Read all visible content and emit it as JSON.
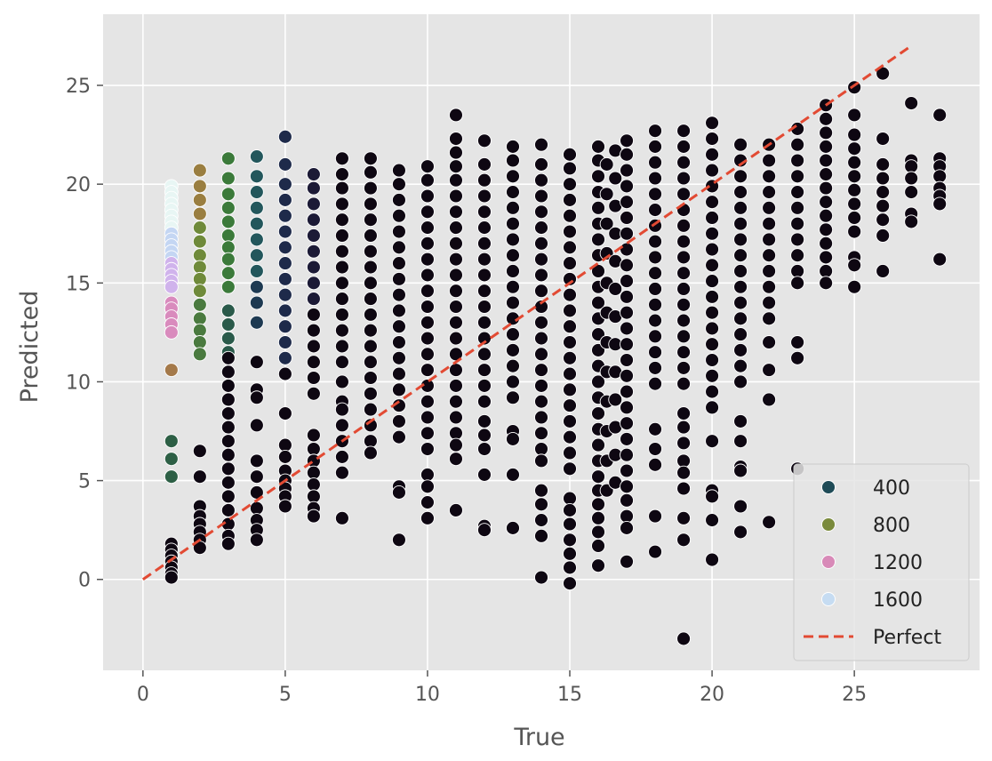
{
  "chart_data": {
    "type": "scatter",
    "title": "",
    "xlabel": "True",
    "ylabel": "Predicted",
    "xlim": [
      -1.4,
      29.4
    ],
    "ylim": [
      -4.6,
      28.6
    ],
    "xticks": [
      0,
      5,
      10,
      15,
      20,
      25
    ],
    "yticks": [
      0,
      5,
      10,
      15,
      20,
      25
    ],
    "grid": true,
    "hue_palette": "cubehelix",
    "legend_position": "lower-right",
    "legend": [
      {
        "label": "400",
        "kind": "marker",
        "color": "#1f4b57"
      },
      {
        "label": "800",
        "kind": "marker",
        "color": "#7a8a3c"
      },
      {
        "label": "1200",
        "kind": "marker",
        "color": "#d88ab8"
      },
      {
        "label": "1600",
        "kind": "marker",
        "color": "#c6dcf2"
      },
      {
        "label": "Perfect",
        "kind": "line",
        "color": "#e24a33"
      }
    ],
    "perfect_line": {
      "x": [
        0,
        27
      ],
      "y": [
        0,
        27
      ],
      "style": "dashed",
      "color": "#e24a33"
    },
    "point_color_default": "#120718",
    "series": [
      {
        "x": 1,
        "color": "#e8f6f4",
        "y": [
          19.9,
          19.6,
          19.3,
          19.0,
          18.7,
          18.4,
          18.1,
          17.8
        ]
      },
      {
        "x": 1,
        "color": "#c4d6f3",
        "y": [
          17.5,
          17.2,
          16.9,
          16.6,
          16.3
        ]
      },
      {
        "x": 1,
        "color": "#d0b3ec",
        "y": [
          16.0,
          15.7,
          15.4,
          15.1,
          14.8
        ]
      },
      {
        "x": 1,
        "color": "#d98bbd",
        "y": [
          14.0,
          13.7,
          13.3,
          12.9,
          12.5
        ]
      },
      {
        "x": 1,
        "color": "#a4794a",
        "y": [
          10.6
        ]
      },
      {
        "x": 1,
        "color": "#2d5f45",
        "y": [
          7.0,
          6.1,
          5.2
        ]
      },
      {
        "x": 1,
        "color": "#0e0712",
        "y": [
          1.8,
          1.5,
          1.2,
          0.9,
          0.6,
          0.3,
          0.1
        ]
      },
      {
        "x": 2,
        "color": "#9a7e40",
        "y": [
          20.7,
          19.9,
          19.2,
          18.5
        ]
      },
      {
        "x": 2,
        "color": "#6f8a3a",
        "y": [
          17.8,
          17.1,
          16.4,
          15.8,
          15.2,
          14.6
        ]
      },
      {
        "x": 2,
        "color": "#4a7a3f",
        "y": [
          13.9,
          13.2,
          12.6,
          12.0,
          11.4
        ]
      },
      {
        "x": 2,
        "color": "#0e0712",
        "y": [
          6.5,
          5.2,
          3.7,
          3.2,
          2.8,
          2.4,
          2.0,
          1.6
        ]
      },
      {
        "x": 3,
        "color": "#3b7a3a",
        "y": [
          21.3,
          20.3,
          19.5,
          18.8,
          18.1,
          17.4,
          16.8,
          16.2,
          15.5,
          14.8
        ]
      },
      {
        "x": 3,
        "color": "#2a5a4a",
        "y": [
          13.6,
          12.9,
          12.2,
          11.5
        ]
      },
      {
        "x": 3,
        "color": "#0e0712",
        "y": [
          11.2,
          10.5,
          9.8,
          9.1,
          8.4,
          7.7,
          7.0,
          6.3,
          5.6,
          4.9,
          4.2,
          3.5,
          2.8,
          2.2,
          1.8
        ]
      },
      {
        "x": 4,
        "color": "#23575c",
        "y": [
          21.4,
          20.4,
          19.6,
          18.8,
          18.0,
          17.2,
          16.4,
          15.6
        ]
      },
      {
        "x": 4,
        "color": "#1e3a52",
        "y": [
          14.8,
          14.0,
          13.0
        ]
      },
      {
        "x": 4,
        "color": "#0e0712",
        "y": [
          11.0,
          9.6,
          9.2,
          7.8,
          6.0,
          5.2,
          4.4,
          3.6,
          3.0,
          2.5,
          2.0
        ]
      },
      {
        "x": 5,
        "color": "#1e2a4a",
        "y": [
          22.4,
          21.0,
          20.0,
          19.2,
          18.4,
          17.6,
          16.8,
          16.0,
          15.2,
          14.4,
          13.6,
          12.8,
          12.0,
          11.2
        ]
      },
      {
        "x": 5,
        "color": "#0e0712",
        "y": [
          10.4,
          8.4,
          6.8,
          6.2,
          5.5,
          5.0,
          4.6,
          4.2,
          3.7
        ]
      },
      {
        "x": 6,
        "color": "#1c1a36",
        "y": [
          20.5,
          19.8,
          19.0,
          18.2,
          17.4,
          16.6,
          15.8,
          15.0,
          14.2
        ]
      },
      {
        "x": 6,
        "color": "#0e0712",
        "y": [
          13.4,
          12.6,
          11.8,
          11.0,
          10.2,
          9.4,
          7.3,
          6.6,
          6.0,
          5.4,
          4.8,
          4.2,
          3.6,
          3.2
        ]
      },
      {
        "x": 7,
        "color": "#0e0712",
        "y": [
          21.3,
          20.5,
          19.8,
          19.0,
          18.2,
          17.4,
          16.6,
          15.8,
          15.0,
          14.2,
          13.4,
          12.6,
          11.8,
          11.0,
          10.0,
          9.0,
          8.6,
          7.8,
          7.0,
          6.2,
          5.4,
          3.1
        ]
      },
      {
        "x": 8,
        "color": "#0e0712",
        "y": [
          21.3,
          20.6,
          19.8,
          19.0,
          18.2,
          17.4,
          16.6,
          15.8,
          15.0,
          14.2,
          13.4,
          12.6,
          11.8,
          11.0,
          10.2,
          9.4,
          8.6,
          7.8,
          7.0,
          6.4
        ]
      },
      {
        "x": 9,
        "color": "#0e0712",
        "y": [
          20.7,
          20.0,
          19.2,
          18.4,
          17.6,
          16.8,
          16.0,
          15.2,
          14.4,
          13.6,
          12.8,
          12.0,
          11.2,
          10.4,
          9.6,
          8.8,
          8.0,
          7.2,
          4.7,
          4.4,
          2.0
        ]
      },
      {
        "x": 10,
        "color": "#0e0712",
        "y": [
          20.9,
          20.2,
          19.4,
          18.6,
          17.8,
          17.0,
          16.2,
          15.4,
          14.6,
          13.8,
          13.0,
          12.2,
          11.4,
          10.6,
          9.8,
          9.0,
          8.2,
          7.4,
          6.6,
          5.3,
          4.7,
          3.9,
          3.1
        ]
      },
      {
        "x": 11,
        "color": "#0e0712",
        "y": [
          23.5,
          22.3,
          21.6,
          20.9,
          20.2,
          19.4,
          18.6,
          17.8,
          17.0,
          16.2,
          15.4,
          14.6,
          13.8,
          13.0,
          12.2,
          11.4,
          10.6,
          9.8,
          9.0,
          8.2,
          7.4,
          6.8,
          6.1,
          3.5
        ]
      },
      {
        "x": 12,
        "color": "#0e0712",
        "y": [
          22.2,
          21.0,
          20.2,
          19.4,
          18.6,
          17.8,
          17.0,
          16.2,
          15.4,
          14.6,
          13.8,
          13.0,
          12.2,
          11.4,
          10.6,
          9.8,
          9.0,
          8.0,
          7.3,
          6.6,
          5.3,
          2.7,
          2.5
        ]
      },
      {
        "x": 13,
        "color": "#0e0712",
        "y": [
          21.9,
          21.2,
          20.4,
          19.6,
          18.8,
          18.0,
          17.2,
          16.4,
          15.6,
          14.8,
          14.0,
          13.2,
          12.4,
          11.6,
          10.8,
          10.0,
          9.2,
          7.5,
          7.1,
          5.3,
          2.6
        ]
      },
      {
        "x": 14,
        "color": "#0e0712",
        "y": [
          22.0,
          21.0,
          20.2,
          19.4,
          18.6,
          17.8,
          17.0,
          16.2,
          15.4,
          14.6,
          13.8,
          13.0,
          12.2,
          11.4,
          10.6,
          9.8,
          9.0,
          8.2,
          7.4,
          6.6,
          6.0,
          4.5,
          3.8,
          3.0,
          2.2,
          0.1
        ]
      },
      {
        "x": 15,
        "color": "#0e0712",
        "y": [
          21.5,
          20.8,
          20.0,
          19.2,
          18.4,
          17.6,
          16.8,
          16.0,
          15.2,
          14.4,
          13.6,
          12.8,
          12.0,
          11.2,
          10.4,
          9.6,
          8.8,
          8.0,
          7.2,
          6.4,
          5.6,
          4.1,
          3.5,
          2.8,
          2.0,
          1.3,
          0.6,
          -0.2
        ]
      },
      {
        "x": 16,
        "color": "#0e0712",
        "y": [
          21.9,
          21.2,
          20.4,
          19.6,
          18.8,
          18.0,
          17.2,
          16.4,
          15.6,
          14.8,
          14.0,
          13.2,
          12.4,
          11.6,
          10.8,
          10.0,
          9.2,
          8.4,
          7.6,
          6.8,
          6.0,
          5.2,
          4.5,
          3.8,
          3.1,
          2.4,
          1.7,
          0.7
        ]
      },
      {
        "x": 16.3,
        "color": "#0e0712",
        "y": [
          21.0,
          19.5,
          18.0,
          16.5,
          15.0,
          13.5,
          12.0,
          10.5,
          9.0,
          7.5,
          6.0,
          4.5
        ]
      },
      {
        "x": 16.6,
        "color": "#0e0712",
        "y": [
          21.7,
          20.3,
          18.9,
          17.5,
          16.1,
          14.7,
          13.3,
          11.9,
          10.5,
          9.1,
          7.7,
          6.3,
          4.9
        ]
      },
      {
        "x": 17,
        "color": "#0e0712",
        "y": [
          22.2,
          21.5,
          20.7,
          19.9,
          19.1,
          18.3,
          17.5,
          16.7,
          15.9,
          15.1,
          14.3,
          13.5,
          12.7,
          11.9,
          11.1,
          10.3,
          9.5,
          8.7,
          7.9,
          7.1,
          6.3,
          5.5,
          4.7,
          4.0,
          3.2,
          2.6,
          0.9
        ]
      },
      {
        "x": 18,
        "color": "#0e0712",
        "y": [
          22.7,
          21.9,
          21.1,
          20.3,
          19.5,
          18.7,
          17.9,
          17.1,
          16.3,
          15.5,
          14.7,
          13.9,
          13.1,
          12.3,
          11.5,
          10.7,
          9.9,
          7.6,
          6.6,
          5.8,
          3.2,
          1.4
        ]
      },
      {
        "x": 19,
        "color": "#0e0712",
        "y": [
          22.7,
          21.9,
          21.1,
          20.3,
          19.5,
          18.7,
          17.9,
          17.1,
          16.3,
          15.5,
          14.7,
          13.9,
          13.1,
          12.3,
          11.5,
          10.7,
          9.9,
          8.4,
          7.7,
          6.9,
          6.0,
          5.4,
          4.6,
          3.1,
          2.0,
          -3.0
        ]
      },
      {
        "x": 20,
        "color": "#0e0712",
        "y": [
          23.1,
          22.3,
          21.5,
          20.7,
          19.9,
          19.1,
          18.3,
          17.5,
          16.7,
          15.9,
          15.1,
          14.3,
          13.5,
          12.7,
          11.9,
          11.1,
          10.3,
          9.5,
          8.7,
          7.0,
          4.5,
          4.2,
          3.0,
          1.0
        ]
      },
      {
        "x": 21,
        "color": "#0e0712",
        "y": [
          22.0,
          21.2,
          20.4,
          19.6,
          18.8,
          18.0,
          17.2,
          16.4,
          15.6,
          14.8,
          14.0,
          13.2,
          12.4,
          11.6,
          10.8,
          10.0,
          8.0,
          7.0,
          5.7,
          5.5,
          3.7,
          2.4
        ]
      },
      {
        "x": 22,
        "color": "#0e0712",
        "y": [
          22.0,
          21.2,
          20.4,
          19.6,
          18.8,
          18.0,
          17.2,
          16.4,
          15.6,
          14.8,
          14.0,
          13.2,
          12.0,
          10.6,
          9.1,
          2.9
        ]
      },
      {
        "x": 23,
        "color": "#0e0712",
        "y": [
          22.8,
          22.0,
          21.2,
          20.4,
          19.6,
          18.8,
          18.0,
          17.2,
          16.4,
          15.6,
          15.0,
          12.0,
          11.2,
          5.6
        ]
      },
      {
        "x": 24,
        "color": "#0e0712",
        "y": [
          24.0,
          23.3,
          22.6,
          21.9,
          21.2,
          20.5,
          19.8,
          19.1,
          18.4,
          17.7,
          17.0,
          16.3,
          15.6,
          15.0
        ]
      },
      {
        "x": 25,
        "color": "#0e0712",
        "y": [
          24.9,
          23.5,
          22.5,
          21.8,
          21.1,
          20.4,
          19.7,
          19.0,
          18.3,
          17.6,
          16.3,
          15.9,
          14.8
        ]
      },
      {
        "x": 26,
        "color": "#0e0712",
        "y": [
          25.6,
          22.3,
          21.0,
          20.3,
          19.6,
          18.9,
          18.2,
          17.4,
          15.6
        ]
      },
      {
        "x": 27,
        "color": "#0e0712",
        "y": [
          24.1,
          21.2,
          20.9,
          20.3,
          19.6,
          18.5,
          18.1
        ]
      },
      {
        "x": 28,
        "color": "#0e0712",
        "y": [
          23.5,
          21.3,
          20.9,
          20.4,
          19.8,
          19.4,
          19.0,
          16.2
        ]
      }
    ]
  }
}
